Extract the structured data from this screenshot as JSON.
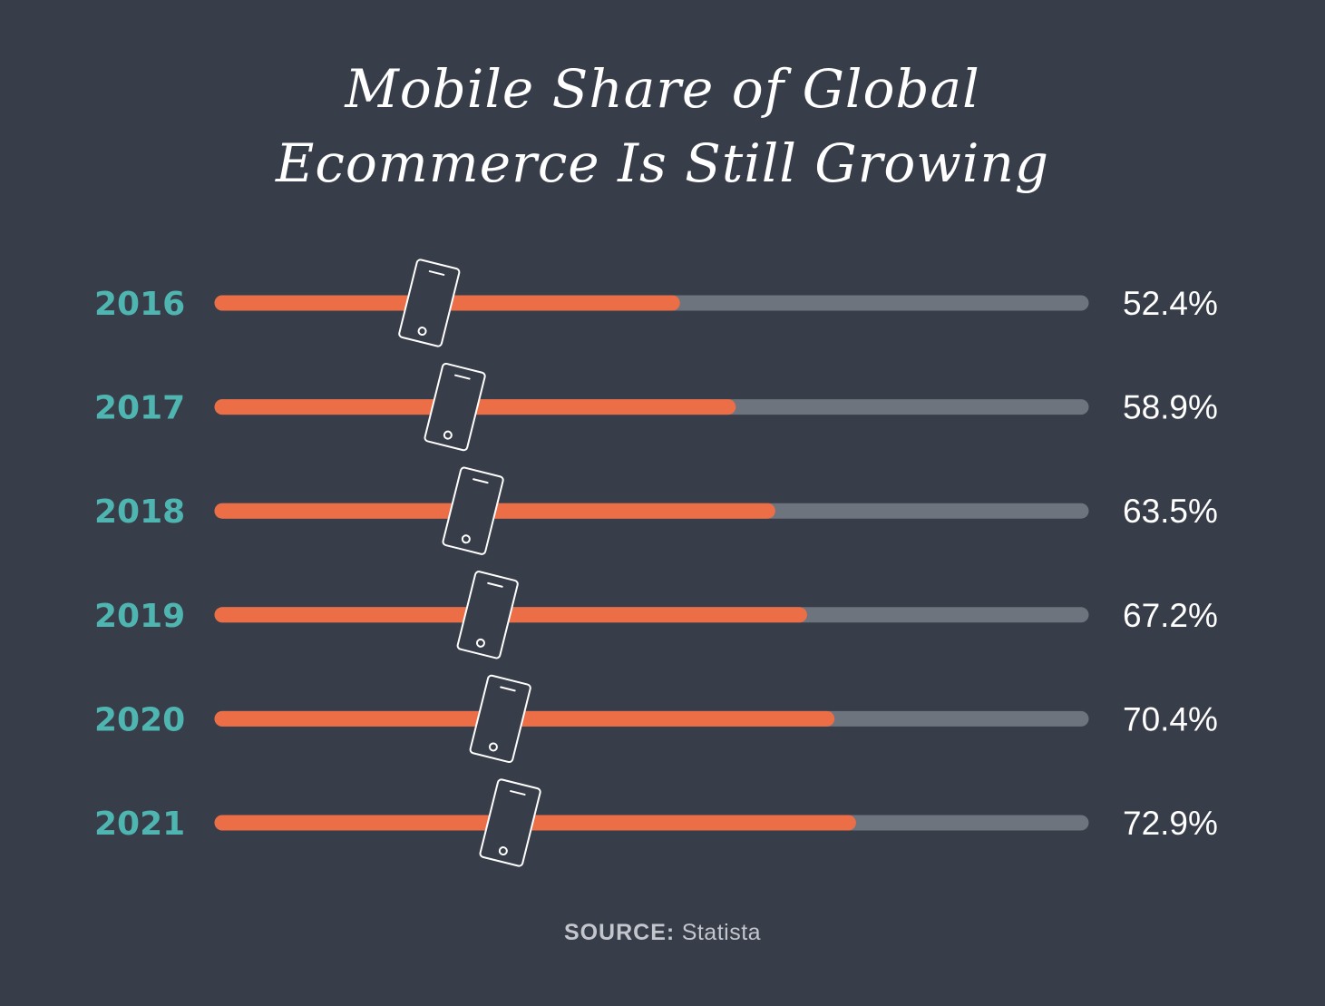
{
  "title_line1": "Mobile Share of Global",
  "title_line2": "Ecommerce Is Still Growing",
  "source_label": "SOURCE:",
  "source_value": "Statista",
  "colors": {
    "background": "#373d49",
    "bar_fill": "#ec6e47",
    "bar_track": "#6e747e",
    "year_label": "#4fb5b0",
    "value_label": "#ffffff",
    "phone_icon": "#ffffff"
  },
  "icons": [
    "phone-icon"
  ],
  "chart_data": {
    "type": "bar",
    "orientation": "horizontal",
    "title": "Mobile Share of Global Ecommerce Is Still Growing",
    "categories": [
      "2016",
      "2017",
      "2018",
      "2019",
      "2020",
      "2021"
    ],
    "values": [
      52.4,
      58.9,
      63.5,
      67.2,
      70.4,
      72.9
    ],
    "value_labels": [
      "52.4%",
      "58.9%",
      "63.5%",
      "67.2%",
      "70.4%",
      "72.9%"
    ],
    "xlim": [
      0,
      100
    ],
    "xlabel": "",
    "ylabel": "",
    "grid": false,
    "legend": "none"
  }
}
